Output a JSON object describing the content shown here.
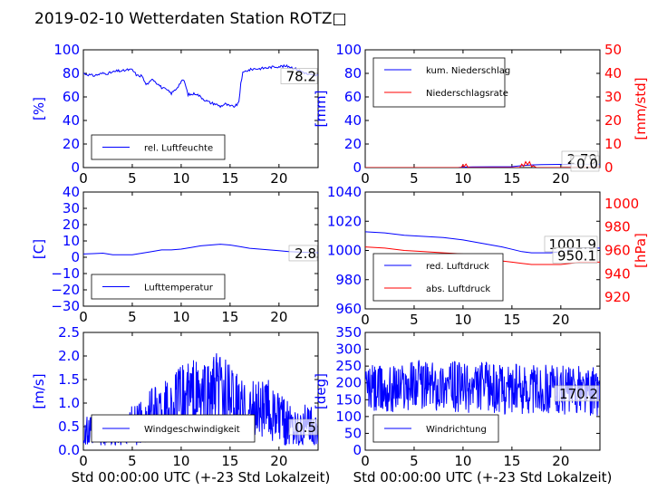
{
  "title": "2019-02-10 Wetterdaten Station ROTZ",
  "title_glyph": "□",
  "xlabel": "Std 00:00:00 UTC (+-23 Std Lokalzeit)",
  "colors": {
    "primary": "#0000ff",
    "secondary": "#ff0000",
    "grid": "#000000"
  },
  "chart_data": [
    {
      "id": "humidity",
      "type": "line",
      "xlim": [
        0,
        24
      ],
      "ylim": [
        0,
        100
      ],
      "yticks": [
        "0",
        "20",
        "40",
        "60",
        "80",
        "100"
      ],
      "ylabel": "[%]",
      "xticks": [
        "0",
        "5",
        "10",
        "15",
        "20"
      ],
      "xlabel": "",
      "legend": "bottom-left",
      "last_value": "78.2",
      "series": [
        {
          "name": "rel. Luftfeuchte",
          "color": "#0000ff",
          "x": [
            0,
            0.5,
            1,
            1.5,
            2,
            2.5,
            3,
            3.5,
            4,
            4.5,
            5,
            5.5,
            6,
            6.3,
            6.6,
            7,
            7.5,
            8,
            8.5,
            9,
            9.5,
            10,
            10.3,
            10.7,
            11,
            11.5,
            12,
            12.5,
            13,
            13.5,
            14,
            14.5,
            15,
            15.5,
            15.9,
            16.1,
            16.3,
            16.6,
            17,
            17.5,
            18,
            19,
            20,
            21,
            22,
            22.5,
            23,
            24
          ],
          "y": [
            80,
            79,
            78,
            79,
            80,
            80,
            81,
            82,
            82,
            83,
            83,
            78,
            78,
            72,
            70,
            76,
            72,
            68,
            66,
            63,
            67,
            73,
            74,
            62,
            62,
            63,
            60,
            57,
            55,
            54,
            52,
            54,
            52,
            52,
            55,
            72,
            80,
            82,
            83,
            84,
            84,
            85,
            86,
            86,
            83,
            81,
            79,
            78
          ]
        }
      ]
    },
    {
      "id": "precipitation",
      "type": "line",
      "xlim": [
        0,
        24
      ],
      "ylim": [
        0,
        100
      ],
      "ylim_right": [
        0,
        50
      ],
      "yticks": [
        "0",
        "20",
        "40",
        "60",
        "80",
        "100"
      ],
      "ylabel": "[mm]",
      "yticks_right": [
        "0",
        "10",
        "20",
        "30",
        "40",
        "50"
      ],
      "ylabel_right": "[mm/std]",
      "xticks": [
        "0",
        "5",
        "10",
        "15",
        "20"
      ],
      "xlabel": "",
      "legend": "top-left",
      "last_value_1": "2.79",
      "last_value_2": "0.0",
      "series": [
        {
          "name": "kum. Niederschlag",
          "color": "#0000ff",
          "axis": "left",
          "x": [
            0,
            9.5,
            10,
            11,
            15,
            16,
            17,
            18,
            20,
            22,
            24
          ],
          "y": [
            0,
            0,
            0.4,
            0.6,
            0.8,
            1.6,
            2.2,
            2.5,
            2.7,
            2.79,
            2.79
          ]
        },
        {
          "name": "Niederschlagsrate",
          "color": "#ff0000",
          "axis": "right",
          "x": [
            0,
            9.8,
            10,
            10.1,
            10.3,
            10.5,
            10.7,
            15.8,
            16,
            16.2,
            16.4,
            16.6,
            16.8,
            17,
            17.2,
            17.5,
            24
          ],
          "y": [
            0,
            0,
            1.2,
            0.3,
            1.5,
            0.2,
            0,
            0,
            1.5,
            0.5,
            2.5,
            1.2,
            2.5,
            0.4,
            0.8,
            0,
            0
          ]
        }
      ]
    },
    {
      "id": "temperature",
      "type": "line",
      "xlim": [
        0,
        24
      ],
      "ylim": [
        -30,
        40
      ],
      "yticks": [
        "−30",
        "−20",
        "−10",
        "0",
        "10",
        "20",
        "30",
        "40"
      ],
      "ylabel": "[C]",
      "xticks": [
        "0",
        "5",
        "10",
        "15",
        "20"
      ],
      "xlabel": "",
      "legend": "bottom-left",
      "last_value": "2.8",
      "series": [
        {
          "name": "Lufttemperatur",
          "color": "#0000ff",
          "x": [
            0,
            1,
            2,
            3,
            4,
            5,
            6,
            7,
            8,
            9,
            10,
            11,
            12,
            13,
            14,
            15,
            16,
            17,
            18,
            19,
            20,
            21,
            22,
            23,
            24
          ],
          "y": [
            2,
            2.2,
            2.5,
            1.5,
            1.5,
            1.5,
            2.5,
            3.5,
            4.5,
            4.5,
            5,
            6,
            7,
            7.5,
            8,
            7.5,
            6.5,
            5.5,
            5,
            4.5,
            4,
            3.5,
            3.2,
            3,
            2.8
          ]
        }
      ]
    },
    {
      "id": "pressure",
      "type": "line",
      "xlim": [
        0,
        24
      ],
      "ylim": [
        950,
        1050
      ],
      "ylim_right": [
        910,
        1010
      ],
      "yticks": [
        "960",
        "980",
        "1000",
        "1020",
        "1040"
      ],
      "ylabel": "",
      "yticks_right": [
        "920",
        "940",
        "960",
        "980",
        "1000"
      ],
      "ylabel_right": "[hPa]",
      "xticks": [
        "0",
        "5",
        "10",
        "15",
        "20"
      ],
      "xlabel": "",
      "legend": "bottom-left",
      "last_value_1": "1001.9",
      "last_value_2": "950.1",
      "series": [
        {
          "name": "red. Luftdruck",
          "color": "#0000ff",
          "axis": "left",
          "x": [
            0,
            2,
            4,
            6,
            8,
            10,
            12,
            14,
            15,
            16,
            17,
            18,
            19,
            20,
            21,
            22,
            23,
            24
          ],
          "y": [
            1016,
            1015,
            1013,
            1012,
            1011,
            1009,
            1006,
            1003,
            1001,
            999,
            998,
            998,
            998,
            999,
            1001,
            1002,
            1002,
            1002
          ]
        },
        {
          "name": "abs. Luftdruck",
          "color": "#ff0000",
          "axis": "right",
          "x": [
            0,
            2,
            4,
            6,
            8,
            10,
            12,
            14,
            15,
            16,
            17,
            18,
            19,
            20,
            21,
            22,
            23,
            24
          ],
          "y": [
            963,
            962,
            960,
            959,
            958,
            957,
            954,
            951,
            950,
            949,
            948,
            948,
            948,
            948,
            949,
            950,
            950,
            950
          ]
        }
      ]
    },
    {
      "id": "windspeed",
      "type": "line",
      "xlim": [
        0,
        24
      ],
      "ylim": [
        0,
        2.5
      ],
      "yticks": [
        "0.0",
        "0.5",
        "1.0",
        "1.5",
        "2.0",
        "2.5"
      ],
      "ylabel": "[m/s]",
      "xticks": [
        "0",
        "5",
        "10",
        "15",
        "20"
      ],
      "xlabel": "Std 00:00:00 UTC (+-23 Std Lokalzeit)",
      "legend": "bottom-left",
      "last_value": "0.5",
      "series": [
        {
          "name": "Windgeschwindigkeit",
          "color": "#0000ff",
          "x": [
            0,
            1,
            2,
            3,
            4,
            5,
            6,
            7,
            8,
            9,
            10,
            11,
            12,
            13,
            14,
            15,
            16,
            17,
            18,
            19,
            20,
            21,
            22,
            23,
            24
          ],
          "y": [
            0.35,
            0.35,
            0.35,
            0.35,
            0.4,
            0.5,
            0.6,
            0.75,
            0.85,
            0.9,
            1.05,
            1.15,
            1.05,
            1.15,
            1.25,
            1.05,
            0.9,
            0.8,
            0.9,
            0.85,
            0.65,
            0.6,
            0.55,
            0.5,
            0.5
          ]
        }
      ]
    },
    {
      "id": "winddirection",
      "type": "line",
      "xlim": [
        0,
        24
      ],
      "ylim": [
        0,
        350
      ],
      "yticks": [
        "0",
        "50",
        "100",
        "150",
        "200",
        "250",
        "300",
        "350"
      ],
      "ylabel": "[deg]",
      "xticks": [
        "0",
        "5",
        "10",
        "15",
        "20"
      ],
      "xlabel": "Std 00:00:00 UTC (+-23 Std Lokalzeit)",
      "legend": "bottom-left",
      "last_value": "170.2",
      "series": [
        {
          "name": "Windrichtung",
          "color": "#0000ff",
          "x": [
            0,
            1,
            2,
            3,
            4,
            5,
            6,
            7,
            8,
            9,
            10,
            11,
            12,
            13,
            14,
            15,
            16,
            17,
            18,
            19,
            20,
            21,
            22,
            23,
            24
          ],
          "y": [
            185,
            180,
            175,
            185,
            190,
            200,
            195,
            190,
            195,
            190,
            185,
            180,
            190,
            185,
            180,
            185,
            180,
            185,
            180,
            185,
            180,
            175,
            180,
            175,
            170
          ]
        }
      ]
    }
  ]
}
